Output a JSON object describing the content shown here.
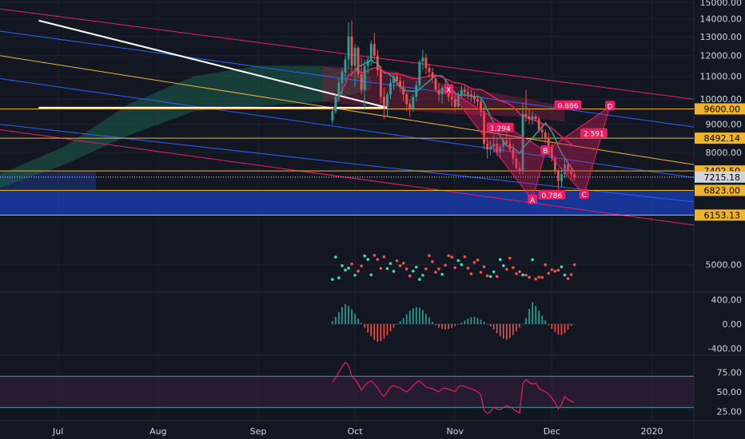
{
  "colors": {
    "background": "#131722",
    "up": "#26a69a",
    "down": "#ef5350",
    "grid": "#1e2230",
    "axis_text": "#d1d4dc",
    "trend_red": "#e91e63",
    "trend_blue": "#2962ff",
    "trend_orange": "#f0b429",
    "harmonic": "#e91e63",
    "band_green": "#1b5e4a",
    "rsi_line": "#e91e63"
  },
  "chart_data": [
    {
      "type": "candlestick",
      "name_panel": "price",
      "y_scale": "log",
      "ylim": [
        4500,
        15000
      ],
      "y_ticks": [
        "15000.00",
        "14000.00",
        "13000.00",
        "12000.00",
        "11000.00",
        "10000.00",
        "9000.00",
        "8000.00",
        "5000.00"
      ],
      "x_ticks": [
        "Jul",
        "Aug",
        "Sep",
        "Oct",
        "Nov",
        "Dec",
        "2020"
      ],
      "x_tick_days": [
        18,
        49,
        80,
        110,
        141,
        171,
        202
      ],
      "x_range_days": [
        0,
        215
      ],
      "last_day": 178,
      "price_labels": [
        {
          "text": "9600.00",
          "value": 9600,
          "bg": "#f0b429",
          "fg": "#000000"
        },
        {
          "text": "8492.14",
          "value": 8492.14,
          "bg": "#f0b429",
          "fg": "#000000"
        },
        {
          "text": "7402.50",
          "value": 7402.5,
          "bg": "#f0b429",
          "fg": "#000000"
        },
        {
          "text": "7215.18",
          "value": 7215.18,
          "bg": "#d1d4dc",
          "fg": "#000000"
        },
        {
          "text": "6823.00",
          "value": 6823,
          "bg": "#f0b429",
          "fg": "#000000"
        },
        {
          "text": "6153.13",
          "value": 6153.13,
          "bg": "#f0b429",
          "fg": "#000000"
        }
      ],
      "candles_ohlc_daily_approx": [
        [
          9150,
          9600,
          9000,
          9500
        ],
        [
          9500,
          10200,
          9400,
          10100
        ],
        [
          10100,
          10900,
          9900,
          10700
        ],
        [
          10700,
          11400,
          10200,
          11200
        ],
        [
          11200,
          12000,
          10800,
          11800
        ],
        [
          11800,
          13800,
          11300,
          13000
        ],
        [
          13000,
          13900,
          11000,
          11500
        ],
        [
          11500,
          12600,
          10500,
          12400
        ],
        [
          12400,
          12500,
          10900,
          11100
        ],
        [
          11100,
          11900,
          10200,
          10400
        ],
        [
          10400,
          11800,
          9600,
          11500
        ],
        [
          11500,
          12000,
          11100,
          11800
        ],
        [
          11800,
          12800,
          11500,
          12600
        ],
        [
          12600,
          13200,
          11800,
          12000
        ],
        [
          12000,
          12300,
          11000,
          11300
        ],
        [
          11300,
          11500,
          9800,
          10100
        ],
        [
          10100,
          10500,
          9200,
          9700
        ],
        [
          9700,
          10300,
          9300,
          10200
        ],
        [
          10200,
          10900,
          10000,
          10700
        ],
        [
          10700,
          11100,
          10400,
          11000
        ],
        [
          11000,
          11200,
          10600,
          10800
        ],
        [
          10800,
          11000,
          10300,
          10500
        ],
        [
          10500,
          10800,
          9900,
          10200
        ],
        [
          10200,
          10300,
          9500,
          9800
        ],
        [
          9800,
          10000,
          9300,
          9600
        ],
        [
          9600,
          10200,
          9500,
          10100
        ],
        [
          10100,
          10800,
          9900,
          10600
        ],
        [
          10600,
          11800,
          10400,
          11700
        ],
        [
          11700,
          12300,
          11300,
          11900
        ],
        [
          11900,
          12100,
          11100,
          11400
        ],
        [
          11400,
          11600,
          10900,
          11200
        ],
        [
          11200,
          11400,
          10700,
          10900
        ],
        [
          10900,
          11100,
          10300,
          10400
        ],
        [
          10400,
          10700,
          9900,
          10200
        ],
        [
          10200,
          10600,
          9800,
          10500
        ],
        [
          10500,
          10900,
          10200,
          10300
        ],
        [
          10300,
          10500,
          9900,
          10100
        ],
        [
          10100,
          10400,
          9700,
          10000
        ],
        [
          10000,
          10200,
          9500,
          9700
        ],
        [
          9700,
          10300,
          9600,
          10200
        ],
        [
          10200,
          10600,
          10000,
          10400
        ],
        [
          10400,
          10600,
          10100,
          10300
        ],
        [
          10300,
          10500,
          10000,
          10200
        ],
        [
          10200,
          10400,
          9900,
          10100
        ],
        [
          10100,
          10300,
          9800,
          10000
        ],
        [
          10000,
          10200,
          9700,
          9900
        ],
        [
          9900,
          10000,
          9300,
          9500
        ],
        [
          9500,
          9700,
          8100,
          8300
        ],
        [
          8300,
          8500,
          7800,
          8100
        ],
        [
          8100,
          8400,
          7900,
          8200
        ],
        [
          8200,
          8600,
          8000,
          8300
        ],
        [
          8300,
          8500,
          7900,
          8000
        ],
        [
          8000,
          8300,
          7800,
          8200
        ],
        [
          8200,
          8500,
          8000,
          8400
        ],
        [
          8400,
          8700,
          8200,
          8300
        ],
        [
          8300,
          8500,
          8000,
          8100
        ],
        [
          8100,
          8300,
          7600,
          7800
        ],
        [
          7800,
          8000,
          7400,
          7500
        ],
        [
          7500,
          7700,
          7300,
          7400
        ],
        [
          7400,
          9800,
          7300,
          9400
        ],
        [
          9400,
          10400,
          9100,
          9300
        ],
        [
          9300,
          9600,
          9000,
          9200
        ],
        [
          9200,
          9500,
          9000,
          9300
        ],
        [
          9300,
          9400,
          9100,
          9200
        ],
        [
          9200,
          9300,
          8700,
          8800
        ],
        [
          8800,
          9000,
          8500,
          8700
        ],
        [
          8700,
          8800,
          8300,
          8500
        ],
        [
          8500,
          8700,
          8000,
          8200
        ],
        [
          8200,
          8300,
          7700,
          7800
        ],
        [
          7800,
          7900,
          7300,
          7400
        ],
        [
          7400,
          7500,
          6800,
          7100
        ],
        [
          7100,
          7500,
          6900,
          7300
        ],
        [
          7300,
          7800,
          7200,
          7600
        ],
        [
          7600,
          7700,
          7300,
          7400
        ],
        [
          7400,
          7500,
          7100,
          7300
        ],
        [
          7300,
          7400,
          7100,
          7215
        ]
      ],
      "moving_averages": [
        {
          "name_hidden": "ma-fast",
          "color": "#26a69a"
        },
        {
          "name_hidden": "ma-slow",
          "color": "#e91e63"
        }
      ],
      "harmonic_pattern": {
        "points": [
          {
            "label": "X",
            "day": 139,
            "price": 10400
          },
          {
            "label": "A",
            "day": 165,
            "price": 6550
          },
          {
            "label": "B",
            "day": 169,
            "price": 8050
          },
          {
            "label": "C",
            "day": 181,
            "price": 6700
          },
          {
            "label": "D",
            "day": 189,
            "price": 9700
          }
        ],
        "ratios": [
          {
            "text": "0.886",
            "day": 176,
            "price": 9720
          },
          {
            "text": "0.786",
            "day": 171,
            "price": 6680
          },
          {
            "text": "2.591",
            "day": 184,
            "price": 8650
          },
          {
            "text": "1.294",
            "day": 155,
            "price": 8850
          }
        ]
      }
    },
    {
      "type": "histogram",
      "name_panel": "macd",
      "y_ticks": [
        "400.00",
        "0.00",
        "-400.00"
      ],
      "ylim": [
        -500,
        500
      ],
      "values": [
        50,
        120,
        200,
        280,
        330,
        300,
        240,
        170,
        90,
        20,
        -60,
        -140,
        -200,
        -260,
        -290,
        -280,
        -240,
        -180,
        -120,
        -60,
        0,
        50,
        100,
        160,
        220,
        260,
        280,
        270,
        230,
        170,
        110,
        40,
        -20,
        -60,
        -80,
        -90,
        -80,
        -60,
        -30,
        0,
        20,
        60,
        90,
        110,
        120,
        100,
        70,
        40,
        0,
        -40,
        -90,
        -150,
        -200,
        -240,
        -260,
        -230,
        -180,
        -120,
        -60,
        0,
        100,
        250,
        360,
        300,
        220,
        140,
        60,
        -20,
        -80,
        -130,
        -170,
        -180,
        -150,
        -90,
        -30,
        0
      ]
    },
    {
      "type": "line",
      "name_panel": "rsi",
      "y_ticks": [
        "75.00",
        "50.00",
        "25.00"
      ],
      "ylim": [
        15,
        95
      ],
      "upper": 70,
      "lower": 30,
      "values": [
        62,
        68,
        75,
        82,
        88,
        84,
        70,
        66,
        60,
        52,
        58,
        62,
        64,
        60,
        55,
        48,
        44,
        50,
        56,
        58,
        56,
        55,
        52,
        50,
        53,
        58,
        62,
        64,
        60,
        56,
        55,
        54,
        52,
        50,
        54,
        55,
        53,
        52,
        50,
        56,
        58,
        57,
        55,
        54,
        52,
        50,
        46,
        26,
        22,
        25,
        30,
        28,
        27,
        30,
        32,
        31,
        28,
        25,
        23,
        60,
        66,
        62,
        60,
        61,
        55,
        52,
        50,
        47,
        42,
        36,
        28,
        34,
        44,
        40,
        38,
        36
      ]
    }
  ]
}
